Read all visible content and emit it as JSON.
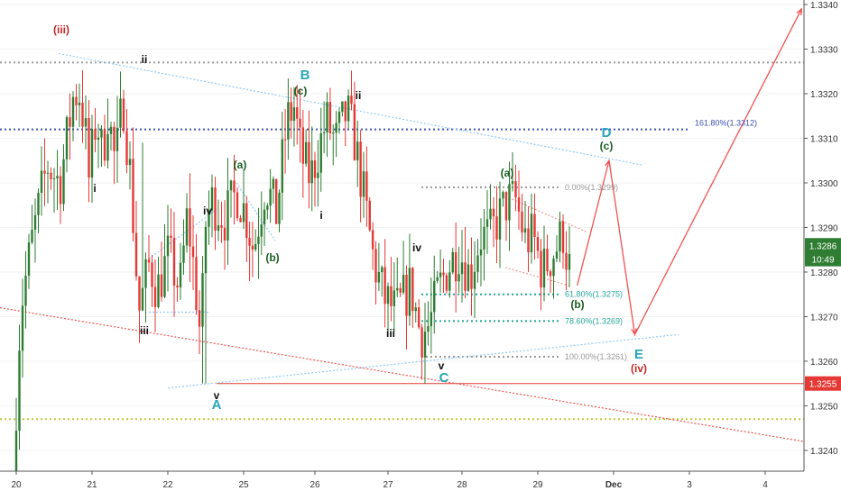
{
  "chart_data": {
    "type": "candlestick",
    "instrument_hint": "",
    "y_range": [
      1.3234,
      1.3341
    ],
    "x_labels": [
      {
        "label": "20",
        "day": 0
      },
      {
        "label": "21",
        "day": 1
      },
      {
        "label": "22",
        "day": 2
      },
      {
        "label": "25",
        "day": 3
      },
      {
        "label": "26",
        "day": 4
      },
      {
        "label": "27",
        "day": 5
      },
      {
        "label": "28",
        "day": 6
      },
      {
        "label": "29",
        "day": 7
      },
      {
        "label": "Dec",
        "day": 8
      },
      {
        "label": "3",
        "day": 9
      },
      {
        "label": "4",
        "day": 10
      }
    ],
    "y_ticks": [
      "1.3240",
      "1.3250",
      "1.3260",
      "1.3270",
      "1.3280",
      "1.3290",
      "1.3300",
      "1.3310",
      "1.3320",
      "1.3330",
      "1.3340"
    ],
    "price_badges": [
      {
        "text": "1.3286",
        "price": 1.3286,
        "color": "#2e7d32"
      },
      {
        "text": "10:49",
        "price": 1.32829,
        "color": "#2e7d32"
      },
      {
        "text": "1.3255",
        "price": 1.3255,
        "color": "#e53935"
      }
    ],
    "fib_levels": [
      {
        "label": "0.00%(1.3299)",
        "price": 1.3299,
        "color": "#999999"
      },
      {
        "label": "61.80%(1.3275)",
        "price": 1.3275,
        "color": "#26a69a"
      },
      {
        "label": "78.60%(1.3269)",
        "price": 1.3269,
        "color": "#26a69a"
      },
      {
        "label": "100.00%(1.3261)",
        "price": 1.3261,
        "color": "#999999"
      }
    ],
    "horizontal_levels": [
      {
        "label": "161.80%(1.3312)",
        "price": 1.3312,
        "color": "#3f51b5"
      },
      {
        "label": "",
        "price": 1.3327,
        "color": "#9e9e9e"
      },
      {
        "label": "",
        "price": 1.3247,
        "color": "#c0ca33"
      },
      {
        "label": "",
        "price": 1.3255,
        "color": "#e53935"
      }
    ],
    "wave_labels": [
      {
        "text": "(iii)",
        "color": "#c62828"
      },
      {
        "text": "ii",
        "color": "#111111"
      },
      {
        "text": "i",
        "color": "#111111"
      },
      {
        "text": "iii",
        "color": "#111111"
      },
      {
        "text": "iv",
        "color": "#111111"
      },
      {
        "text": "v",
        "color": "#111111"
      },
      {
        "text": "A",
        "color": "#26a6b8"
      },
      {
        "text": "(a)",
        "color": "#1b5e20"
      },
      {
        "text": "(b)",
        "color": "#1b5e20"
      },
      {
        "text": "B",
        "color": "#26a6b8"
      },
      {
        "text": "(c)",
        "color": "#1b5e20"
      },
      {
        "text": "ii",
        "color": "#111111"
      },
      {
        "text": "i",
        "color": "#111111"
      },
      {
        "text": "iii",
        "color": "#111111"
      },
      {
        "text": "iv",
        "color": "#111111"
      },
      {
        "text": "v",
        "color": "#111111"
      },
      {
        "text": "C",
        "color": "#26a6b8"
      },
      {
        "text": "(a)",
        "color": "#1b5e20"
      },
      {
        "text": "(b)",
        "color": "#1b5e20"
      },
      {
        "text": "D",
        "color": "#26a6b8"
      },
      {
        "text": "(c)",
        "color": "#1b5e20"
      },
      {
        "text": "E",
        "color": "#26a6b8"
      },
      {
        "text": "(iv)",
        "color": "#c62828"
      }
    ],
    "colors": {
      "up": "#2e7d32",
      "down": "#e53935",
      "projection": "#ef5350",
      "trendline": "#90caf9"
    }
  }
}
